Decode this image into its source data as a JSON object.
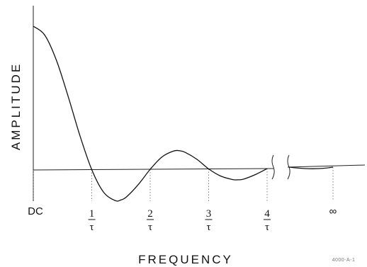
{
  "chart_data": {
    "type": "line",
    "xlabel": "FREQUENCY",
    "ylabel": "AMPLITUDE",
    "x_ticks": [
      {
        "x": 0,
        "label": "DC"
      },
      {
        "x": 1,
        "numerator": "1",
        "denominator": "τ"
      },
      {
        "x": 2,
        "numerator": "2",
        "denominator": "τ"
      },
      {
        "x": 3,
        "numerator": "3",
        "denominator": "τ"
      },
      {
        "x": 4,
        "numerator": "4",
        "denominator": "τ"
      },
      {
        "x": "∞",
        "label": "∞"
      }
    ],
    "axis_break": "between 4/τ and ∞",
    "series": [
      {
        "x": [
          0,
          0.2,
          0.4,
          0.6,
          0.8,
          1.0,
          1.2,
          1.4,
          1.5,
          1.6,
          1.8,
          2.0,
          2.2,
          2.4,
          2.5,
          2.6,
          2.8,
          3.0,
          3.2,
          3.4,
          3.5,
          3.6,
          3.8,
          4.0
        ],
        "y": [
          1.0,
          0.935,
          0.757,
          0.505,
          0.234,
          0.0,
          -0.156,
          -0.216,
          -0.212,
          -0.189,
          -0.104,
          0.0,
          0.085,
          0.126,
          0.128,
          0.116,
          0.067,
          0.0,
          -0.049,
          -0.074,
          -0.077,
          -0.072,
          -0.041,
          0.0
        ]
      }
    ],
    "ylim": [
      -0.3,
      1.1
    ],
    "grid": false,
    "figure_id": "4000-A-1"
  }
}
